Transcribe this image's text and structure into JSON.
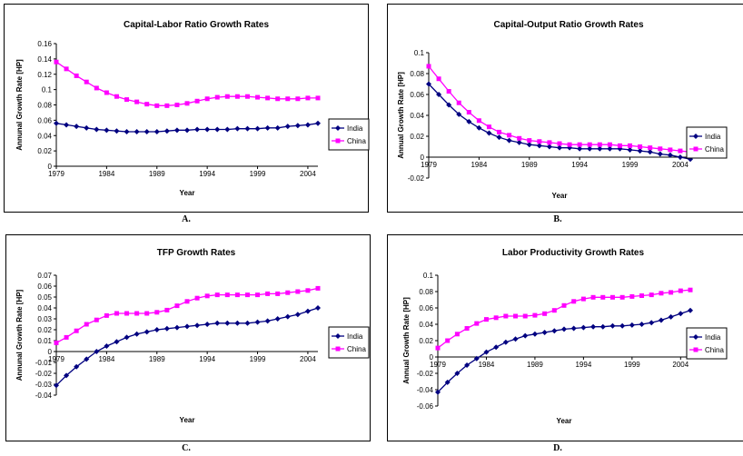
{
  "chart_data": [
    {
      "type": "line",
      "caption": "A.",
      "title": "Capital-Labor Ratio Growth Rates",
      "xlabel": "Year",
      "ylabel": "Annunal Growth Rate [HP]",
      "ylim": [
        0,
        0.16
      ],
      "yticks": [
        "0",
        "0.02",
        "0.04",
        "0.06",
        "0.08",
        "0.1",
        "0.12",
        "0.14",
        "0.16"
      ],
      "xticks": [
        "1979",
        "1984",
        "1989",
        "1994",
        "1999",
        "2004"
      ],
      "x": [
        1979,
        1980,
        1981,
        1982,
        1983,
        1984,
        1985,
        1986,
        1987,
        1988,
        1989,
        1990,
        1991,
        1992,
        1993,
        1994,
        1995,
        1996,
        1997,
        1998,
        1999,
        2000,
        2001,
        2002,
        2003,
        2004,
        2005
      ],
      "legend_position": "right",
      "series": [
        {
          "name": "India",
          "color": "#000080",
          "marker": "diamond",
          "values": [
            0.056,
            0.054,
            0.052,
            0.05,
            0.048,
            0.047,
            0.046,
            0.045,
            0.045,
            0.045,
            0.045,
            0.046,
            0.047,
            0.047,
            0.048,
            0.048,
            0.048,
            0.048,
            0.049,
            0.049,
            0.049,
            0.05,
            0.05,
            0.052,
            0.053,
            0.054,
            0.056
          ]
        },
        {
          "name": "China",
          "color": "#FF00FF",
          "marker": "square",
          "values": [
            0.136,
            0.127,
            0.118,
            0.11,
            0.102,
            0.096,
            0.091,
            0.087,
            0.084,
            0.081,
            0.079,
            0.079,
            0.08,
            0.082,
            0.085,
            0.088,
            0.09,
            0.091,
            0.091,
            0.091,
            0.09,
            0.089,
            0.088,
            0.088,
            0.088,
            0.089,
            0.089
          ]
        }
      ]
    },
    {
      "type": "line",
      "caption": "B.",
      "title": "Capital-Output Ratio Growth Rates",
      "xlabel": "Year",
      "ylabel": "Annual Growth Rate [HP]",
      "ylim": [
        -0.02,
        0.1
      ],
      "yticks": [
        "-0.02",
        "0",
        "0.02",
        "0.04",
        "0.06",
        "0.08",
        "0.1"
      ],
      "xticks": [
        "1979",
        "1984",
        "1989",
        "1994",
        "1999",
        "2004"
      ],
      "x": [
        1979,
        1980,
        1981,
        1982,
        1983,
        1984,
        1985,
        1986,
        1987,
        1988,
        1989,
        1990,
        1991,
        1992,
        1993,
        1994,
        1995,
        1996,
        1997,
        1998,
        1999,
        2000,
        2001,
        2002,
        2003,
        2004,
        2005
      ],
      "legend_position": "right",
      "series": [
        {
          "name": "India",
          "color": "#000080",
          "marker": "diamond",
          "values": [
            0.07,
            0.06,
            0.05,
            0.041,
            0.034,
            0.028,
            0.023,
            0.019,
            0.016,
            0.014,
            0.012,
            0.011,
            0.01,
            0.009,
            0.009,
            0.008,
            0.008,
            0.008,
            0.008,
            0.008,
            0.007,
            0.006,
            0.005,
            0.003,
            0.002,
            0.0,
            -0.002
          ]
        },
        {
          "name": "China",
          "color": "#FF00FF",
          "marker": "square",
          "values": [
            0.087,
            0.075,
            0.063,
            0.052,
            0.043,
            0.035,
            0.029,
            0.024,
            0.021,
            0.018,
            0.016,
            0.015,
            0.014,
            0.013,
            0.012,
            0.012,
            0.012,
            0.012,
            0.012,
            0.011,
            0.011,
            0.01,
            0.009,
            0.008,
            0.007,
            0.006,
            0.005
          ]
        }
      ]
    },
    {
      "type": "line",
      "caption": "C.",
      "title": "TFP Growth Rates",
      "xlabel": "Year",
      "ylabel": "Annunal Growth Rate [HP]",
      "ylim": [
        -0.04,
        0.07
      ],
      "yticks": [
        "-0.04",
        "-0.03",
        "-0.02",
        "-0.01",
        "0",
        "0.01",
        "0.02",
        "0.03",
        "0.04",
        "0.05",
        "0.06",
        "0.07"
      ],
      "xticks": [
        "1979",
        "1984",
        "1989",
        "1994",
        "1999",
        "2004"
      ],
      "x": [
        1979,
        1980,
        1981,
        1982,
        1983,
        1984,
        1985,
        1986,
        1987,
        1988,
        1989,
        1990,
        1991,
        1992,
        1993,
        1994,
        1995,
        1996,
        1997,
        1998,
        1999,
        2000,
        2001,
        2002,
        2003,
        2004,
        2005
      ],
      "legend_position": "right",
      "series": [
        {
          "name": "India",
          "color": "#000080",
          "marker": "diamond",
          "values": [
            -0.031,
            -0.022,
            -0.014,
            -0.007,
            0.0,
            0.005,
            0.009,
            0.013,
            0.016,
            0.018,
            0.02,
            0.021,
            0.022,
            0.023,
            0.024,
            0.025,
            0.026,
            0.026,
            0.026,
            0.026,
            0.027,
            0.028,
            0.03,
            0.032,
            0.034,
            0.037,
            0.04
          ]
        },
        {
          "name": "China",
          "color": "#FF00FF",
          "marker": "square",
          "values": [
            0.008,
            0.013,
            0.019,
            0.025,
            0.029,
            0.033,
            0.035,
            0.035,
            0.035,
            0.035,
            0.036,
            0.038,
            0.042,
            0.046,
            0.049,
            0.051,
            0.052,
            0.052,
            0.052,
            0.052,
            0.052,
            0.053,
            0.053,
            0.054,
            0.055,
            0.056,
            0.058
          ]
        }
      ]
    },
    {
      "type": "line",
      "caption": "D.",
      "title": "Labor Productivity Growth Rates",
      "xlabel": "Year",
      "ylabel": "Annual Growth Rate [HP]",
      "ylim": [
        -0.06,
        0.1
      ],
      "yticks": [
        "-0.06",
        "-0.04",
        "-0.02",
        "0",
        "0.02",
        "0.04",
        "0.06",
        "0.08",
        "0.1"
      ],
      "xticks": [
        "1979",
        "1984",
        "1989",
        "1994",
        "1999",
        "2004"
      ],
      "x": [
        1979,
        1980,
        1981,
        1982,
        1983,
        1984,
        1985,
        1986,
        1987,
        1988,
        1989,
        1990,
        1991,
        1992,
        1993,
        1994,
        1995,
        1996,
        1997,
        1998,
        1999,
        2000,
        2001,
        2002,
        2003,
        2004,
        2005
      ],
      "legend_position": "right",
      "series": [
        {
          "name": "India",
          "color": "#000080",
          "marker": "diamond",
          "values": [
            -0.043,
            -0.031,
            -0.02,
            -0.01,
            -0.002,
            0.006,
            0.012,
            0.018,
            0.022,
            0.026,
            0.028,
            0.03,
            0.032,
            0.034,
            0.035,
            0.036,
            0.037,
            0.037,
            0.038,
            0.038,
            0.039,
            0.04,
            0.042,
            0.045,
            0.049,
            0.053,
            0.057
          ]
        },
        {
          "name": "China",
          "color": "#FF00FF",
          "marker": "square",
          "values": [
            0.011,
            0.02,
            0.028,
            0.035,
            0.041,
            0.046,
            0.048,
            0.05,
            0.05,
            0.05,
            0.051,
            0.053,
            0.057,
            0.063,
            0.068,
            0.071,
            0.073,
            0.073,
            0.073,
            0.073,
            0.074,
            0.075,
            0.076,
            0.078,
            0.079,
            0.081,
            0.082
          ]
        }
      ]
    }
  ]
}
